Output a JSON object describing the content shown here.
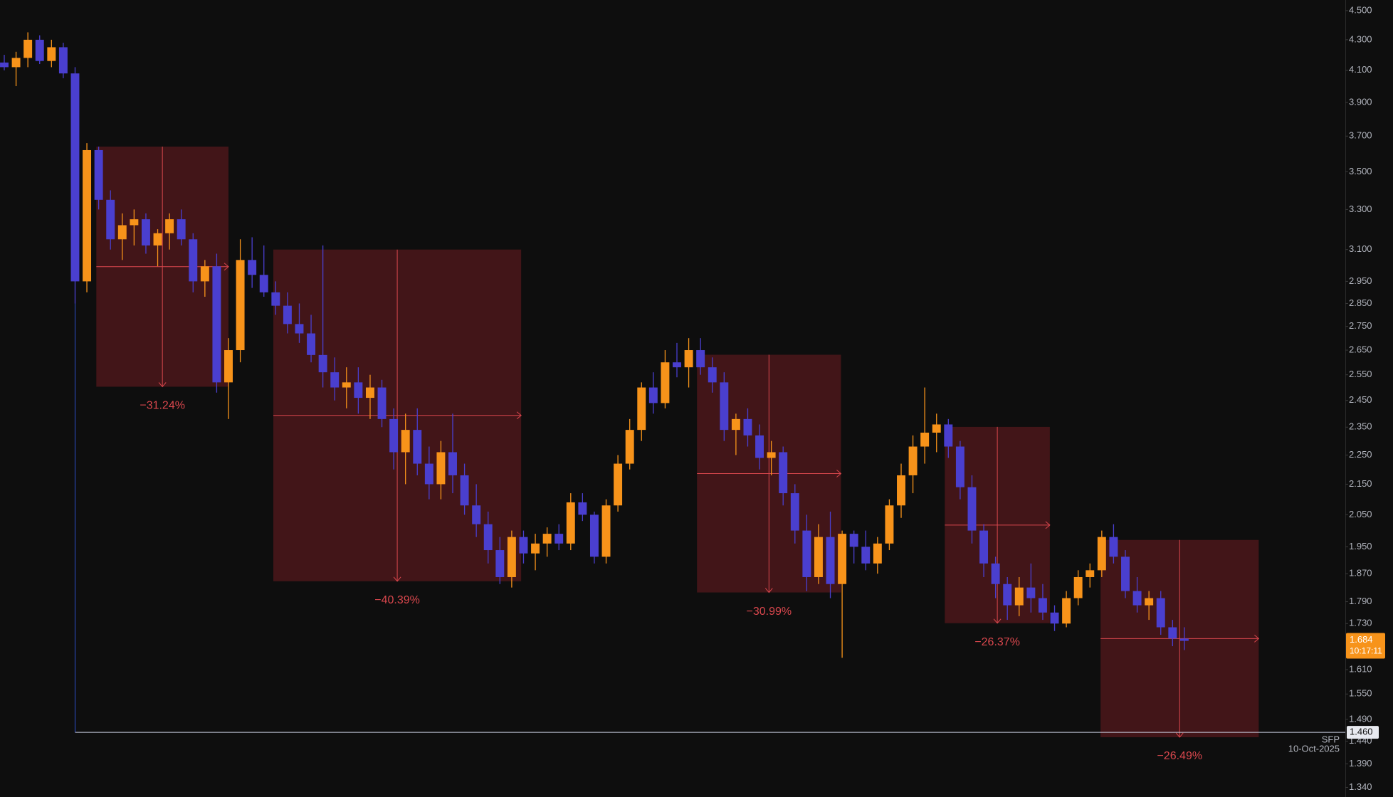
{
  "chart_data": {
    "type": "candlestick",
    "symbol": "SFP",
    "date": "10-Oct-2025",
    "log": true,
    "ylim": [
      1.32,
      4.575
    ],
    "yticks": [
      {
        "value": 4.5,
        "label": "4.500"
      },
      {
        "value": 4.3,
        "label": "4.300"
      },
      {
        "value": 4.1,
        "label": "4.100"
      },
      {
        "value": 3.9,
        "label": "3.900"
      },
      {
        "value": 3.7,
        "label": "3.700"
      },
      {
        "value": 3.5,
        "label": "3.500"
      },
      {
        "value": 3.3,
        "label": "3.300"
      },
      {
        "value": 3.1,
        "label": "3.100"
      },
      {
        "value": 2.95,
        "label": "2.950"
      },
      {
        "value": 2.85,
        "label": "2.850"
      },
      {
        "value": 2.75,
        "label": "2.750"
      },
      {
        "value": 2.65,
        "label": "2.650"
      },
      {
        "value": 2.55,
        "label": "2.550"
      },
      {
        "value": 2.45,
        "label": "2.450"
      },
      {
        "value": 2.35,
        "label": "2.350"
      },
      {
        "value": 2.25,
        "label": "2.250"
      },
      {
        "value": 2.15,
        "label": "2.150"
      },
      {
        "value": 2.05,
        "label": "2.050"
      },
      {
        "value": 1.95,
        "label": "1.950"
      },
      {
        "value": 1.87,
        "label": "1.870"
      },
      {
        "value": 1.79,
        "label": "1.790"
      },
      {
        "value": 1.73,
        "label": "1.730"
      },
      {
        "value": 1.61,
        "label": "1.610"
      },
      {
        "value": 1.55,
        "label": "1.550"
      },
      {
        "value": 1.49,
        "label": "1.490"
      },
      {
        "value": 1.44,
        "label": "1.440"
      },
      {
        "value": 1.39,
        "label": "1.390"
      },
      {
        "value": 1.34,
        "label": "1.340"
      }
    ],
    "colors": {
      "up": "#f7931a",
      "down": "#4a3fcf"
    },
    "ohlc": [
      [
        4.15,
        4.2,
        4.1,
        4.12
      ],
      [
        4.12,
        4.22,
        4.0,
        4.18
      ],
      [
        4.18,
        4.35,
        4.12,
        4.3
      ],
      [
        4.3,
        4.33,
        4.14,
        4.16
      ],
      [
        4.16,
        4.3,
        4.12,
        4.25
      ],
      [
        4.25,
        4.28,
        4.05,
        4.08
      ],
      [
        4.08,
        4.12,
        2.85,
        2.95
      ],
      [
        2.95,
        3.66,
        2.9,
        3.62
      ],
      [
        3.62,
        3.64,
        3.3,
        3.35
      ],
      [
        3.35,
        3.4,
        3.1,
        3.15
      ],
      [
        3.15,
        3.28,
        3.05,
        3.22
      ],
      [
        3.22,
        3.3,
        3.12,
        3.25
      ],
      [
        3.25,
        3.28,
        3.08,
        3.12
      ],
      [
        3.12,
        3.2,
        3.02,
        3.18
      ],
      [
        3.18,
        3.28,
        3.1,
        3.25
      ],
      [
        3.25,
        3.3,
        3.12,
        3.15
      ],
      [
        3.15,
        3.18,
        2.9,
        2.95
      ],
      [
        2.95,
        3.05,
        2.88,
        3.02
      ],
      [
        3.02,
        3.08,
        2.48,
        2.52
      ],
      [
        2.52,
        2.7,
        2.38,
        2.65
      ],
      [
        2.65,
        3.15,
        2.6,
        3.05
      ],
      [
        3.05,
        3.16,
        2.92,
        2.98
      ],
      [
        2.98,
        3.12,
        2.88,
        2.9
      ],
      [
        2.9,
        2.95,
        2.8,
        2.84
      ],
      [
        2.84,
        2.9,
        2.72,
        2.76
      ],
      [
        2.76,
        2.85,
        2.68,
        2.72
      ],
      [
        2.72,
        2.8,
        2.6,
        2.63
      ],
      [
        2.63,
        3.12,
        2.5,
        2.56
      ],
      [
        2.56,
        2.62,
        2.45,
        2.5
      ],
      [
        2.5,
        2.58,
        2.42,
        2.52
      ],
      [
        2.52,
        2.58,
        2.4,
        2.46
      ],
      [
        2.46,
        2.55,
        2.38,
        2.5
      ],
      [
        2.5,
        2.53,
        2.35,
        2.38
      ],
      [
        2.38,
        2.42,
        2.2,
        2.26
      ],
      [
        2.26,
        2.4,
        2.15,
        2.34
      ],
      [
        2.34,
        2.42,
        2.18,
        2.22
      ],
      [
        2.22,
        2.28,
        2.1,
        2.15
      ],
      [
        2.15,
        2.3,
        2.1,
        2.26
      ],
      [
        2.26,
        2.4,
        2.12,
        2.18
      ],
      [
        2.18,
        2.22,
        2.05,
        2.08
      ],
      [
        2.08,
        2.15,
        1.98,
        2.02
      ],
      [
        2.02,
        2.06,
        1.9,
        1.94
      ],
      [
        1.94,
        1.98,
        1.84,
        1.86
      ],
      [
        1.86,
        2.0,
        1.83,
        1.98
      ],
      [
        1.98,
        2.0,
        1.9,
        1.93
      ],
      [
        1.93,
        1.99,
        1.88,
        1.96
      ],
      [
        1.96,
        2.01,
        1.92,
        1.99
      ],
      [
        1.99,
        2.02,
        1.94,
        1.96
      ],
      [
        1.96,
        2.12,
        1.94,
        2.09
      ],
      [
        2.09,
        2.12,
        2.03,
        2.05
      ],
      [
        2.05,
        2.06,
        1.9,
        1.92
      ],
      [
        1.92,
        2.1,
        1.9,
        2.08
      ],
      [
        2.08,
        2.25,
        2.06,
        2.22
      ],
      [
        2.22,
        2.38,
        2.2,
        2.34
      ],
      [
        2.34,
        2.52,
        2.3,
        2.5
      ],
      [
        2.5,
        2.56,
        2.4,
        2.44
      ],
      [
        2.44,
        2.65,
        2.42,
        2.6
      ],
      [
        2.6,
        2.68,
        2.54,
        2.58
      ],
      [
        2.58,
        2.7,
        2.5,
        2.65
      ],
      [
        2.65,
        2.7,
        2.55,
        2.58
      ],
      [
        2.58,
        2.62,
        2.48,
        2.52
      ],
      [
        2.52,
        2.56,
        2.3,
        2.34
      ],
      [
        2.34,
        2.4,
        2.25,
        2.38
      ],
      [
        2.38,
        2.42,
        2.28,
        2.32
      ],
      [
        2.32,
        2.36,
        2.2,
        2.24
      ],
      [
        2.24,
        2.3,
        2.18,
        2.26
      ],
      [
        2.26,
        2.28,
        2.08,
        2.12
      ],
      [
        2.12,
        2.15,
        1.96,
        2.0
      ],
      [
        2.0,
        2.05,
        1.82,
        1.86
      ],
      [
        1.86,
        2.02,
        1.84,
        1.98
      ],
      [
        1.98,
        2.06,
        1.8,
        1.84
      ],
      [
        1.84,
        2.0,
        1.64,
        1.99
      ],
      [
        1.99,
        2.0,
        1.9,
        1.95
      ],
      [
        1.95,
        2.0,
        1.88,
        1.9
      ],
      [
        1.9,
        1.98,
        1.87,
        1.96
      ],
      [
        1.96,
        2.1,
        1.94,
        2.08
      ],
      [
        2.08,
        2.22,
        2.04,
        2.18
      ],
      [
        2.18,
        2.32,
        2.12,
        2.28
      ],
      [
        2.28,
        2.5,
        2.22,
        2.33
      ],
      [
        2.33,
        2.4,
        2.26,
        2.36
      ],
      [
        2.36,
        2.38,
        2.24,
        2.28
      ],
      [
        2.28,
        2.3,
        2.1,
        2.14
      ],
      [
        2.14,
        2.18,
        1.96,
        2.0
      ],
      [
        2.0,
        2.02,
        1.86,
        1.9
      ],
      [
        1.9,
        1.92,
        1.8,
        1.84
      ],
      [
        1.84,
        1.86,
        1.74,
        1.78
      ],
      [
        1.78,
        1.86,
        1.75,
        1.83
      ],
      [
        1.83,
        1.9,
        1.76,
        1.8
      ],
      [
        1.8,
        1.84,
        1.74,
        1.76
      ],
      [
        1.76,
        1.78,
        1.71,
        1.73
      ],
      [
        1.73,
        1.82,
        1.72,
        1.8
      ],
      [
        1.8,
        1.88,
        1.78,
        1.86
      ],
      [
        1.86,
        1.9,
        1.83,
        1.88
      ],
      [
        1.88,
        2.0,
        1.86,
        1.98
      ],
      [
        1.98,
        2.02,
        1.9,
        1.92
      ],
      [
        1.92,
        1.94,
        1.8,
        1.82
      ],
      [
        1.82,
        1.86,
        1.76,
        1.78
      ],
      [
        1.78,
        1.82,
        1.74,
        1.8
      ],
      [
        1.8,
        1.82,
        1.7,
        1.72
      ],
      [
        1.72,
        1.74,
        1.67,
        1.69
      ],
      [
        1.69,
        1.72,
        1.66,
        1.684
      ]
    ],
    "measurements": [
      {
        "start": 7.8,
        "end": 19.0,
        "high": 3.64,
        "low": 2.503,
        "label": "−31.24%"
      },
      {
        "start": 22.8,
        "end": 43.8,
        "high": 3.1,
        "low": 1.848,
        "label": "−40.39%"
      },
      {
        "start": 58.7,
        "end": 70.9,
        "high": 2.631,
        "low": 1.816,
        "label": "−30.99%"
      },
      {
        "start": 79.7,
        "end": 88.6,
        "high": 2.351,
        "low": 1.731,
        "label": "−26.37%"
      },
      {
        "start": 92.9,
        "end": 106.3,
        "high": 1.971,
        "low": 1.449,
        "label": "−26.49%"
      }
    ],
    "price_line": {
      "value": 1.46,
      "label": "1.460",
      "from": 6
    },
    "last_price": {
      "value": 1.684,
      "label": "1.684",
      "countdown": "10:17:11"
    }
  }
}
